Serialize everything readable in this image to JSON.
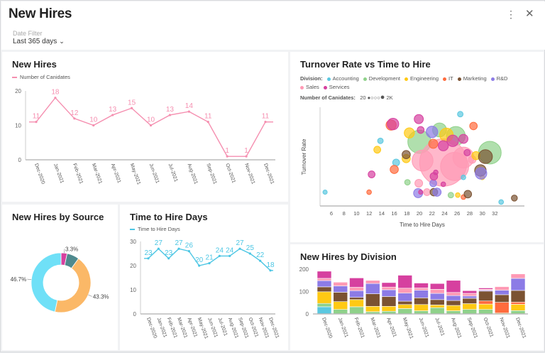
{
  "header": {
    "title": "New Hires",
    "date_filter_label": "Date Filter",
    "date_filter_value": "Last 365 days",
    "more_icon": "vertical-dots-icon",
    "close_icon": "close-icon"
  },
  "colors": {
    "Accounting": "#5bc8e0",
    "Development": "#8fd18a",
    "Engineering": "#ffc914",
    "IT": "#ff6b3d",
    "Marketing": "#7b5232",
    "R&D": "#8c7be6",
    "Sales": "#ff9ab5",
    "Services": "#d6409f"
  },
  "chart_data": [
    {
      "id": "new_hires",
      "type": "line",
      "title": "New Hires",
      "series": [
        {
          "name": "Number of Canidates",
          "color": "#f58fb0",
          "values": [
            11,
            18,
            12,
            10,
            13,
            15,
            10,
            13,
            14,
            11,
            1,
            1,
            11
          ]
        }
      ],
      "categories": [
        "Dec-2020",
        "Jan-2021",
        "Feb-2021",
        "Mar-2021",
        "Apr-2021",
        "May-2021",
        "Jun-2021",
        "Jul-2021",
        "Aug-2021",
        "Sep-2021",
        "Oct-2021",
        "Nov-2021",
        "Dec-2021"
      ],
      "yticks": [
        "0",
        "10",
        "20"
      ],
      "ylim": [
        0,
        20
      ],
      "data_labels": true,
      "legend": "top-left"
    },
    {
      "id": "turnover",
      "type": "scatter",
      "title": "Turnover Rate vs Time to Hire",
      "xlabel": "Time to Hire Days",
      "ylabel": "Turnover Rate",
      "legend_title": "Division:",
      "size_legend_title": "Number of Canidates:",
      "size_legend_min": "20",
      "size_legend_max": "2K",
      "xticks": [
        "6",
        "8",
        "10",
        "12",
        "14",
        "16",
        "18",
        "20",
        "22",
        "24",
        "26",
        "28",
        "30",
        "32"
      ],
      "xlim": [
        4.2,
        36.7
      ],
      "divisions": [
        "Accounting",
        "Development",
        "Engineering",
        "IT",
        "Marketing",
        "R&D",
        "Sales",
        "Services"
      ],
      "points": [
        {
          "d": "Development",
          "x": 20,
          "y": 65,
          "s": 900
        },
        {
          "d": "Development",
          "x": 23.2,
          "y": 77,
          "s": 480
        },
        {
          "d": "Development",
          "x": 25.8,
          "y": 71,
          "s": 700
        },
        {
          "d": "Development",
          "x": 31.2,
          "y": 54,
          "s": 880
        },
        {
          "d": "Development",
          "x": 18.1,
          "y": 24,
          "s": 100
        },
        {
          "d": "Development",
          "x": 25,
          "y": 11,
          "s": 100
        },
        {
          "d": "Sales",
          "x": 20.5,
          "y": 46,
          "s": 800
        },
        {
          "d": "Sales",
          "x": 27,
          "y": 49,
          "s": 800
        },
        {
          "d": "Sales",
          "x": 25.6,
          "y": 40,
          "s": 1130
        },
        {
          "d": "Sales",
          "x": 23.8,
          "y": 44,
          "s": 2000
        },
        {
          "d": "Sales",
          "x": 19.9,
          "y": 23,
          "s": 200
        },
        {
          "d": "Sales",
          "x": 21.2,
          "y": 14,
          "s": 160
        },
        {
          "d": "Sales",
          "x": 28.4,
          "y": 47,
          "s": 190
        },
        {
          "d": "Accounting",
          "x": 5,
          "y": 14,
          "s": 40
        },
        {
          "d": "Accounting",
          "x": 13.8,
          "y": 66,
          "s": 100
        },
        {
          "d": "Accounting",
          "x": 16.3,
          "y": 44,
          "s": 160
        },
        {
          "d": "Accounting",
          "x": 26.5,
          "y": 93,
          "s": 100
        },
        {
          "d": "Accounting",
          "x": 27,
          "y": 29,
          "s": 60
        },
        {
          "d": "Accounting",
          "x": 33,
          "y": 4,
          "s": 60
        },
        {
          "d": "IT",
          "x": 15.5,
          "y": 82,
          "s": 310
        },
        {
          "d": "IT",
          "x": 12,
          "y": 14,
          "s": 60
        },
        {
          "d": "IT",
          "x": 16,
          "y": 37,
          "s": 220
        },
        {
          "d": "IT",
          "x": 28.6,
          "y": 81,
          "s": 190
        },
        {
          "d": "IT",
          "x": 22.2,
          "y": 63,
          "s": 260
        },
        {
          "d": "IT",
          "x": 27,
          "y": 9,
          "s": 60
        },
        {
          "d": "Engineering",
          "x": 13.3,
          "y": 57,
          "s": 160
        },
        {
          "d": "Engineering",
          "x": 18.4,
          "y": 74,
          "s": 310
        },
        {
          "d": "Engineering",
          "x": 17.9,
          "y": 48,
          "s": 220
        },
        {
          "d": "Engineering",
          "x": 24.3,
          "y": 72,
          "s": 460
        },
        {
          "d": "Engineering",
          "x": 26.1,
          "y": 11,
          "s": 60
        },
        {
          "d": "Engineering",
          "x": 29,
          "y": 51,
          "s": 220
        },
        {
          "d": "Engineering",
          "x": 30,
          "y": 29,
          "s": 60
        },
        {
          "d": "Marketing",
          "x": 17.9,
          "y": 52,
          "s": 220
        },
        {
          "d": "Marketing",
          "x": 30.5,
          "y": 50,
          "s": 480
        },
        {
          "d": "Marketing",
          "x": 29.7,
          "y": 36,
          "s": 370
        },
        {
          "d": "Marketing",
          "x": 22.3,
          "y": 14,
          "s": 190
        },
        {
          "d": "Marketing",
          "x": 27.7,
          "y": 12,
          "s": 190
        },
        {
          "d": "Marketing",
          "x": 35.1,
          "y": 8,
          "s": 120
        },
        {
          "d": "R&D",
          "x": 22,
          "y": 75,
          "s": 370
        },
        {
          "d": "R&D",
          "x": 29.8,
          "y": 33,
          "s": 370
        },
        {
          "d": "R&D",
          "x": 19.8,
          "y": 13,
          "s": 260
        },
        {
          "d": "R&D",
          "x": 22.8,
          "y": 14,
          "s": 220
        },
        {
          "d": "R&D",
          "x": 22.2,
          "y": 23,
          "s": 160
        },
        {
          "d": "Services",
          "x": 15.8,
          "y": 83,
          "s": 370
        },
        {
          "d": "Services",
          "x": 19.9,
          "y": 88,
          "s": 260
        },
        {
          "d": "Services",
          "x": 20.2,
          "y": 77,
          "s": 160
        },
        {
          "d": "Services",
          "x": 12.4,
          "y": 32,
          "s": 160
        },
        {
          "d": "Services",
          "x": 23.8,
          "y": 61,
          "s": 310
        },
        {
          "d": "Services",
          "x": 25.3,
          "y": 66,
          "s": 370
        },
        {
          "d": "Services",
          "x": 27,
          "y": 68,
          "s": 260
        },
        {
          "d": "Services",
          "x": 27.6,
          "y": 54,
          "s": 140
        },
        {
          "d": "Services",
          "x": 22.3,
          "y": 30,
          "s": 190
        },
        {
          "d": "Services",
          "x": 22.6,
          "y": 34,
          "s": 60
        },
        {
          "d": "Services",
          "x": 23.8,
          "y": 22,
          "s": 60
        },
        {
          "d": "Services",
          "x": 20.2,
          "y": 14,
          "s": 40
        }
      ]
    },
    {
      "id": "source",
      "type": "pie",
      "title": "New Hires by Source",
      "donut": true,
      "slices": [
        {
          "value": 3.3,
          "label": "3.3%",
          "color": "#d6409f"
        },
        {
          "value": 6.7,
          "label": "",
          "color": "#4f8a8e"
        },
        {
          "value": 43.3,
          "label": "43.3%",
          "color": "#fbb867"
        },
        {
          "value": 46.7,
          "label": "46.7%",
          "color": "#6fe0f7"
        }
      ]
    },
    {
      "id": "time_to_hire",
      "type": "line",
      "title": "Time to Hire Days",
      "series": [
        {
          "name": "Time to Hire Days",
          "color": "#4cc6e4",
          "values": [
            23,
            27,
            23,
            27,
            26,
            20,
            21,
            24,
            24,
            27,
            25,
            22,
            18
          ]
        }
      ],
      "categories": [
        "Dec-2020",
        "Jan-2021",
        "Feb-2021",
        "Mar-2021",
        "Apr-2021",
        "May-2021",
        "Jun-2021",
        "Jul-2021",
        "Aug-2021",
        "Sep-2021",
        "Oct-2021",
        "Nov-2021",
        "Dec-2021"
      ],
      "yticks": [
        "0",
        "10",
        "20",
        "30"
      ],
      "ylim": [
        0,
        30
      ],
      "data_labels": true,
      "legend": "top-left"
    },
    {
      "id": "division",
      "type": "bar",
      "stacked": true,
      "title": "New Hires by Division",
      "yticks": [
        "0",
        "100",
        "200"
      ],
      "ylim": [
        0,
        200
      ],
      "categories": [
        "Dec-2020",
        "Jan-2021",
        "Feb-2021",
        "Mar-2021",
        "Apr-2021",
        "May-2021",
        "Jun-2021",
        "Jul-2021",
        "Aug-2021",
        "Sep-2021",
        "Oct-2021",
        "Nov-2021",
        "Dec-2021"
      ],
      "series": [
        {
          "name": "Accounting",
          "values": [
            32,
            0,
            0,
            0,
            0,
            0,
            0,
            0,
            0,
            0,
            0,
            0,
            0
          ]
        },
        {
          "name": "Development",
          "values": [
            15,
            20,
            32,
            10,
            12,
            24,
            14,
            28,
            14,
            20,
            20,
            0,
            15
          ]
        },
        {
          "name": "Engineering",
          "values": [
            52,
            35,
            32,
            24,
            22,
            18,
            28,
            12,
            24,
            26,
            24,
            4,
            28
          ]
        },
        {
          "name": "IT",
          "values": [
            0,
            0,
            0,
            0,
            0,
            0,
            0,
            0,
            0,
            0,
            14,
            48,
            10
          ]
        },
        {
          "name": "Marketing",
          "values": [
            22,
            42,
            10,
            56,
            44,
            15,
            30,
            24,
            22,
            24,
            44,
            34,
            52
          ]
        },
        {
          "name": "R&D",
          "values": [
            28,
            28,
            30,
            46,
            30,
            36,
            34,
            28,
            22,
            10,
            4,
            20,
            54
          ]
        },
        {
          "name": "Sales",
          "values": [
            10,
            17,
            15,
            14,
            12,
            22,
            10,
            18,
            14,
            12,
            4,
            16,
            20
          ]
        },
        {
          "name": "Services",
          "values": [
            32,
            0,
            42,
            0,
            20,
            58,
            22,
            26,
            54,
            12,
            6,
            0,
            0
          ]
        }
      ]
    }
  ]
}
